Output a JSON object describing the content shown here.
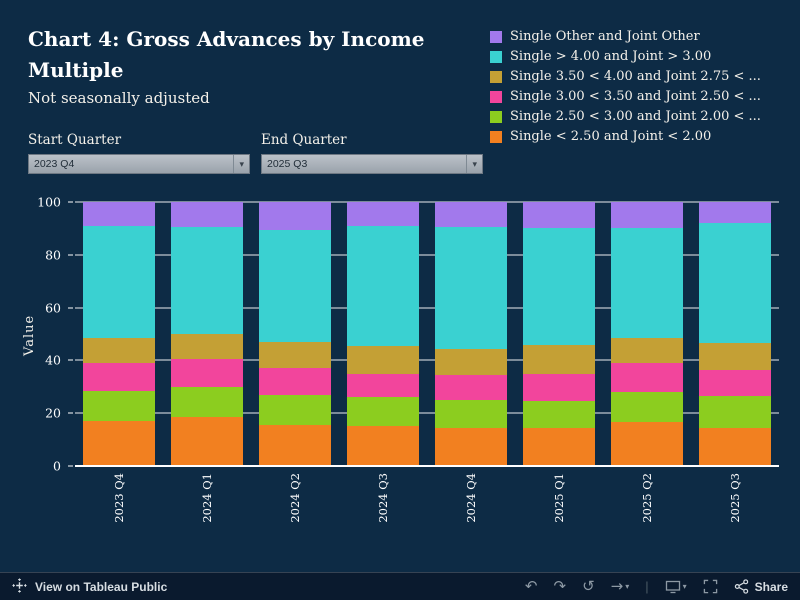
{
  "page": {
    "background": "#0d2b45"
  },
  "header": {
    "title": "Chart 4: Gross Advances by Income Multiple",
    "subtitle": "Not seasonally adjusted"
  },
  "legend": {
    "items": [
      {
        "label": "Single Other and Joint Other",
        "color": "#a279ec"
      },
      {
        "label": "Single > 4.00 and Joint > 3.00",
        "color": "#3ad1d1"
      },
      {
        "label": "Single 3.50 < 4.00 and Joint 2.75 < ...",
        "color": "#c4a035"
      },
      {
        "label": "Single 3.00 < 3.50 and Joint 2.50 < ...",
        "color": "#f2459c"
      },
      {
        "label": "Single 2.50 < 3.00 and Joint 2.00 < ...",
        "color": "#8ccd1f"
      },
      {
        "label": "Single < 2.50 and Joint < 2.00",
        "color": "#f28020"
      }
    ]
  },
  "filters": {
    "start": {
      "label": "Start Quarter",
      "value": "2023 Q4"
    },
    "end": {
      "label": "End Quarter",
      "value": "2025 Q3"
    }
  },
  "chart_data": {
    "type": "bar",
    "stacked": true,
    "stack_mode": "percent",
    "title": "Chart 4: Gross Advances by Income Multiple",
    "subtitle": "Not seasonally adjusted",
    "categories": [
      "2023 Q4",
      "2024 Q1",
      "2024 Q2",
      "2024 Q3",
      "2024 Q4",
      "2025 Q1",
      "2025 Q2",
      "2025 Q3"
    ],
    "series": [
      {
        "name": "Single < 2.50 and Joint < 2.00",
        "color": "#f28020",
        "values": [
          17.0,
          18.5,
          15.5,
          15.0,
          14.5,
          14.5,
          16.5,
          14.5
        ]
      },
      {
        "name": "Single 2.50 < 3.00 and Joint 2.00 < ...",
        "color": "#8ccd1f",
        "values": [
          11.5,
          11.5,
          11.5,
          11.0,
          10.5,
          10.0,
          11.5,
          12.0
        ]
      },
      {
        "name": "Single 3.00 < 3.50 and Joint 2.50 < ...",
        "color": "#f2459c",
        "values": [
          10.5,
          10.5,
          10.0,
          9.0,
          9.5,
          10.5,
          11.0,
          10.0
        ]
      },
      {
        "name": "Single 3.50 < 4.00 and Joint 2.75 < ...",
        "color": "#c4a035",
        "values": [
          9.5,
          9.5,
          10.0,
          10.5,
          10.0,
          11.0,
          9.5,
          10.0
        ]
      },
      {
        "name": "Single > 4.00 and Joint > 3.00",
        "color": "#3ad1d1",
        "values": [
          42.5,
          40.5,
          42.5,
          45.5,
          46.0,
          44.0,
          41.5,
          45.5
        ]
      },
      {
        "name": "Single Other and Joint Other",
        "color": "#a279ec",
        "values": [
          9.0,
          9.5,
          10.5,
          9.0,
          9.5,
          10.0,
          10.0,
          8.0
        ]
      }
    ],
    "xlabel": "",
    "ylabel": "Value",
    "ylim": [
      0,
      100
    ],
    "yticks": [
      0,
      20,
      40,
      60,
      80,
      100
    ],
    "grid": true,
    "legend_position": "top-right"
  },
  "toolbar": {
    "view_label": "View on Tableau Public",
    "share_label": "Share",
    "icons": [
      "tableau-logo",
      "undo",
      "redo",
      "reset",
      "forward",
      "download",
      "fullscreen",
      "share"
    ]
  }
}
